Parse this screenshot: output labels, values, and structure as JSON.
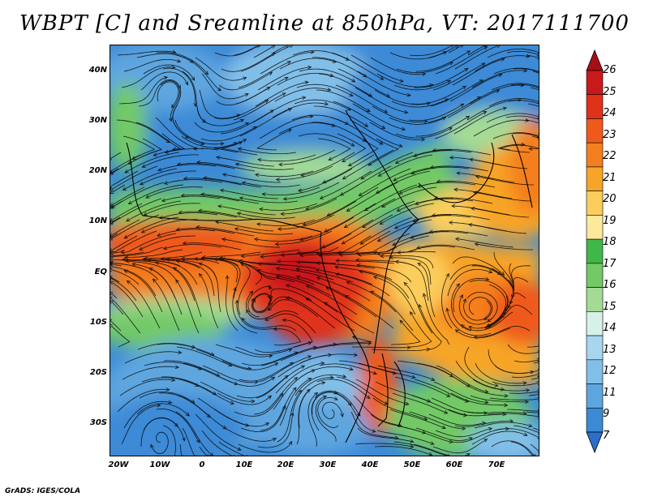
{
  "title": "WBPT [C] and Sreamline at 850hPa, VT: 2017111700",
  "footer": "GrADS: IGES/COLA",
  "lat_ticks": [
    "40N",
    "30N",
    "20N",
    "10N",
    "EQ",
    "10S",
    "20S",
    "30S"
  ],
  "lon_ticks": [
    "20W",
    "10W",
    "0",
    "10E",
    "20E",
    "30E",
    "40E",
    "50E",
    "60E",
    "70E"
  ],
  "colorbar": {
    "labels": [
      "26",
      "25",
      "24",
      "23",
      "22",
      "21",
      "20",
      "19",
      "18",
      "17",
      "16",
      "15",
      "14",
      "13",
      "12",
      "11",
      "9",
      "7"
    ],
    "colors": [
      "#a50f15",
      "#c8191b",
      "#e0321a",
      "#ef5a1c",
      "#f47f1e",
      "#f7a528",
      "#fbcd5c",
      "#fce99c",
      "#41b649",
      "#72c966",
      "#a4db94",
      "#d8f1e8",
      "#a9d6ef",
      "#82bfe8",
      "#5ea6df",
      "#3c8ad6",
      "#2a6fcd"
    ]
  }
}
